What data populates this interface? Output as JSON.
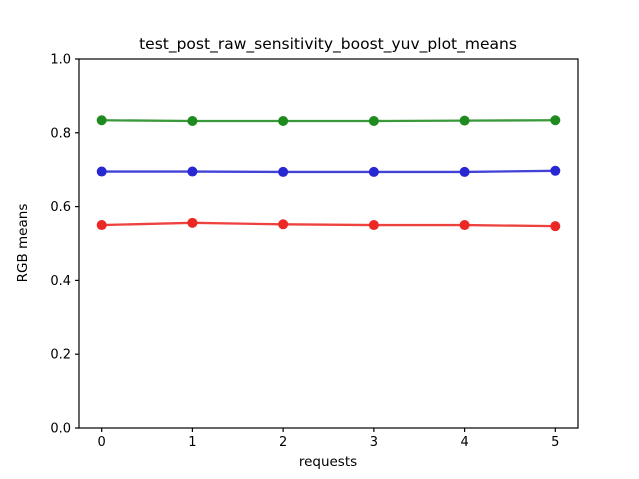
{
  "figure": {
    "background": "#ffffff",
    "frame_color": "#000000"
  },
  "chart_data": {
    "type": "line",
    "title": "test_post_raw_sensitivity_boost_yuv_plot_means",
    "xlabel": "requests",
    "ylabel": "RGB means",
    "xlim": [
      -0.25,
      5.25
    ],
    "ylim": [
      0.0,
      1.0
    ],
    "grid": false,
    "legend": "none",
    "xticks": [
      0,
      1,
      2,
      3,
      4,
      5
    ],
    "xtick_labels": [
      "0",
      "1",
      "2",
      "3",
      "4",
      "5"
    ],
    "yticks": [
      0.0,
      0.2,
      0.4,
      0.6,
      0.8,
      1.0
    ],
    "ytick_labels": [
      "0.0",
      "0.2",
      "0.4",
      "0.6",
      "0.8",
      "1.0"
    ],
    "x": [
      0,
      1,
      2,
      3,
      4,
      5
    ],
    "series": [
      {
        "name": "green-line",
        "color": "#1f8b1f",
        "marker": "circle",
        "values": [
          0.834,
          0.832,
          0.832,
          0.832,
          0.833,
          0.834
        ]
      },
      {
        "name": "blue-line",
        "color": "#2828d2",
        "marker": "circle",
        "values": [
          0.695,
          0.695,
          0.694,
          0.694,
          0.694,
          0.697
        ]
      },
      {
        "name": "red-line",
        "color": "#eb2823",
        "marker": "circle",
        "values": [
          0.55,
          0.556,
          0.552,
          0.55,
          0.55,
          0.547
        ]
      }
    ]
  }
}
